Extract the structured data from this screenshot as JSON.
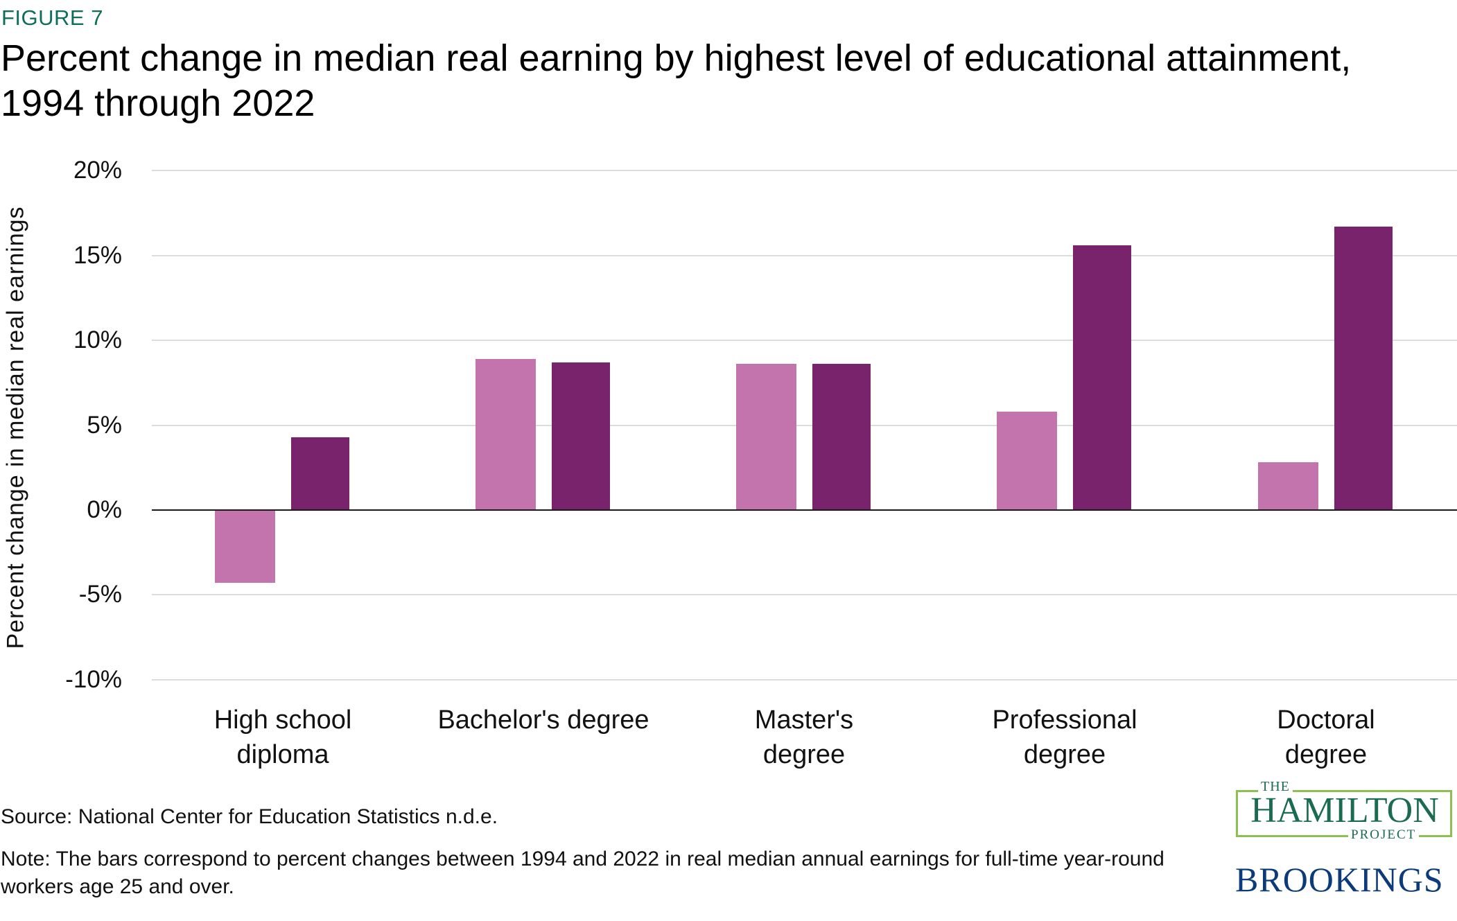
{
  "header": {
    "figure_label": "FIGURE 7",
    "title": "Percent change in median real earning by highest level of educational attainment, 1994 through 2022"
  },
  "footer": {
    "source": "Source: National Center for Education Statistics n.d.e.",
    "note": "Note: The bars correspond to percent changes between 1994 and 2022 in real median annual earnings for full-time year-round workers age 25 and over."
  },
  "logos": {
    "hamilton_the": "THE",
    "hamilton_main": "HAMILTON",
    "hamilton_project": "PROJECT",
    "brookings": "BROOKINGS"
  },
  "colors": {
    "series_light": "#c474ad",
    "series_dark": "#78236b",
    "figure_label": "#0f6e5a",
    "hamilton_green": "#1b6b4f",
    "hamilton_border": "#8cc152",
    "brookings_blue": "#0b3b7a"
  },
  "chart_data": {
    "type": "bar",
    "title": "Percent change in median real earning by highest level of educational attainment, 1994 through 2022",
    "xlabel": "",
    "ylabel": "Percent change in median real earnings",
    "categories": [
      "High school diploma",
      "Bachelor's degree",
      "Master's degree",
      "Professional degree",
      "Doctoral degree"
    ],
    "category_lines": [
      [
        "High school",
        "diploma"
      ],
      [
        "Bachelor's degree"
      ],
      [
        "Master's",
        "degree"
      ],
      [
        "Professional",
        "degree"
      ],
      [
        "Doctoral",
        "degree"
      ]
    ],
    "series": [
      {
        "name": "Series 1 (light pink)",
        "color": "#c474ad",
        "values": [
          -4.3,
          8.9,
          8.6,
          5.8,
          2.8
        ]
      },
      {
        "name": "Series 2 (dark purple)",
        "color": "#78236b",
        "values": [
          4.3,
          8.7,
          8.6,
          15.6,
          16.7
        ]
      }
    ],
    "ylim": [
      -10,
      20
    ],
    "yticks": [
      20,
      15,
      10,
      5,
      0,
      -5,
      -10
    ],
    "ytick_labels": [
      "20%",
      "15%",
      "10%",
      "5%",
      "0%",
      "-5%",
      "-10%"
    ],
    "grid": true,
    "legend": "none"
  }
}
